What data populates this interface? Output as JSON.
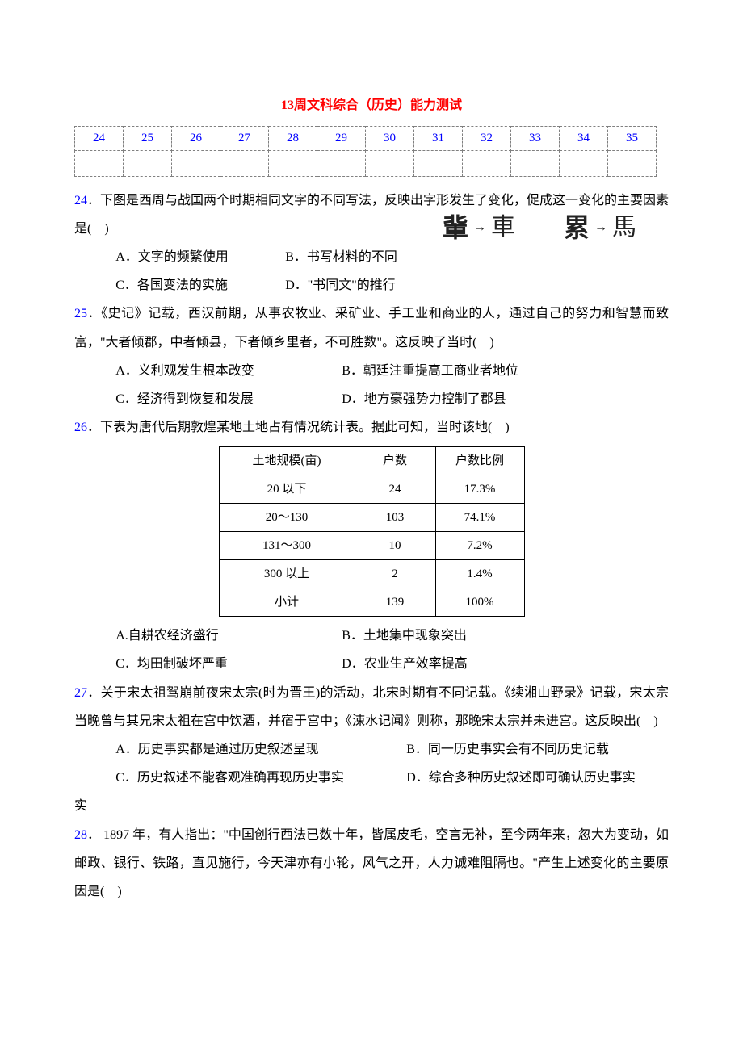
{
  "title_prefix": "13",
  "title_main": "周文科综合（历史）能力测试",
  "answer_grid": [
    "24",
    "25",
    "26",
    "27",
    "28",
    "29",
    "30",
    "31",
    "32",
    "33",
    "34",
    "35"
  ],
  "q24": {
    "num": "24",
    "text": "．下图是西周与战国两个时期相同文字的不同写法，反映出字形发生了变化，促成这一变化的主要因素是(　)",
    "A": "A．文字的频繁使用",
    "B": "B．书写材料的不同",
    "C": "C．各国变法的实施",
    "D": "D．\"书同文\"的推行",
    "glyph1_old": "軰",
    "glyph1_new": "車",
    "glyph2_old": "累",
    "glyph2_new": "馬"
  },
  "q25": {
    "num": "25",
    "text": "．《史记》记载，西汉前期，从事农牧业、采矿业、手工业和商业的人，通过自己的努力和智慧而致富，\"大者倾郡，中者倾县，下者倾乡里者，不可胜数\"。这反映了当时(　)",
    "A": "A．义利观发生根本改变",
    "B": "B．朝廷注重提高工商业者地位",
    "C": "C．经济得到恢复和发展",
    "D": "D．地方豪强势力控制了郡县"
  },
  "q26": {
    "num": "26",
    "text": "．下表为唐代后期敦煌某地土地占有情况统计表。据此可知，当时该地(　)",
    "columns": [
      "土地规模(亩)",
      "户数",
      "户数比例"
    ],
    "rows": [
      [
        "20 以下",
        "24",
        "17.3%"
      ],
      [
        "20～130",
        "103",
        "74.1%"
      ],
      [
        "131～300",
        "10",
        "7.2%"
      ],
      [
        "300 以上",
        "2",
        "1.4%"
      ],
      [
        "小计",
        "139",
        "100%"
      ]
    ],
    "A": "A.自耕农经济盛行",
    "B": "B．土地集中现象突出",
    "C": "C．均田制破坏严重",
    "D": "D．农业生产效率提高"
  },
  "q27": {
    "num": "27",
    "text": "．关于宋太祖驾崩前夜宋太宗(时为晋王)的活动，北宋时期有不同记载。《续湘山野录》记载，宋太宗当晚曾与其兄宋太祖在宫中饮酒，并宿于宫中；《涑水记闻》则称，那晚宋太宗并未进宫。这反映出(　)",
    "A": "A．历史事实都是通过历史叙述呈现",
    "B": "B．同一历史事实会有不同历史记载",
    "C": "C．历史叙述不能客观准确再现历史事实",
    "D": "D．综合多种历史叙述即可确认历史事实",
    "D_tail": "实"
  },
  "q28": {
    "num": "28",
    "text": "． 1897 年，有人指出：\"中国创行西法已数十年，皆属皮毛，空言无补，至今两年来，忽大为变动，如邮政、银行、铁路，直见施行，今天津亦有小轮，风气之开，人力诚难阻隔也。\"产生上述变化的主要原因是(　)"
  }
}
